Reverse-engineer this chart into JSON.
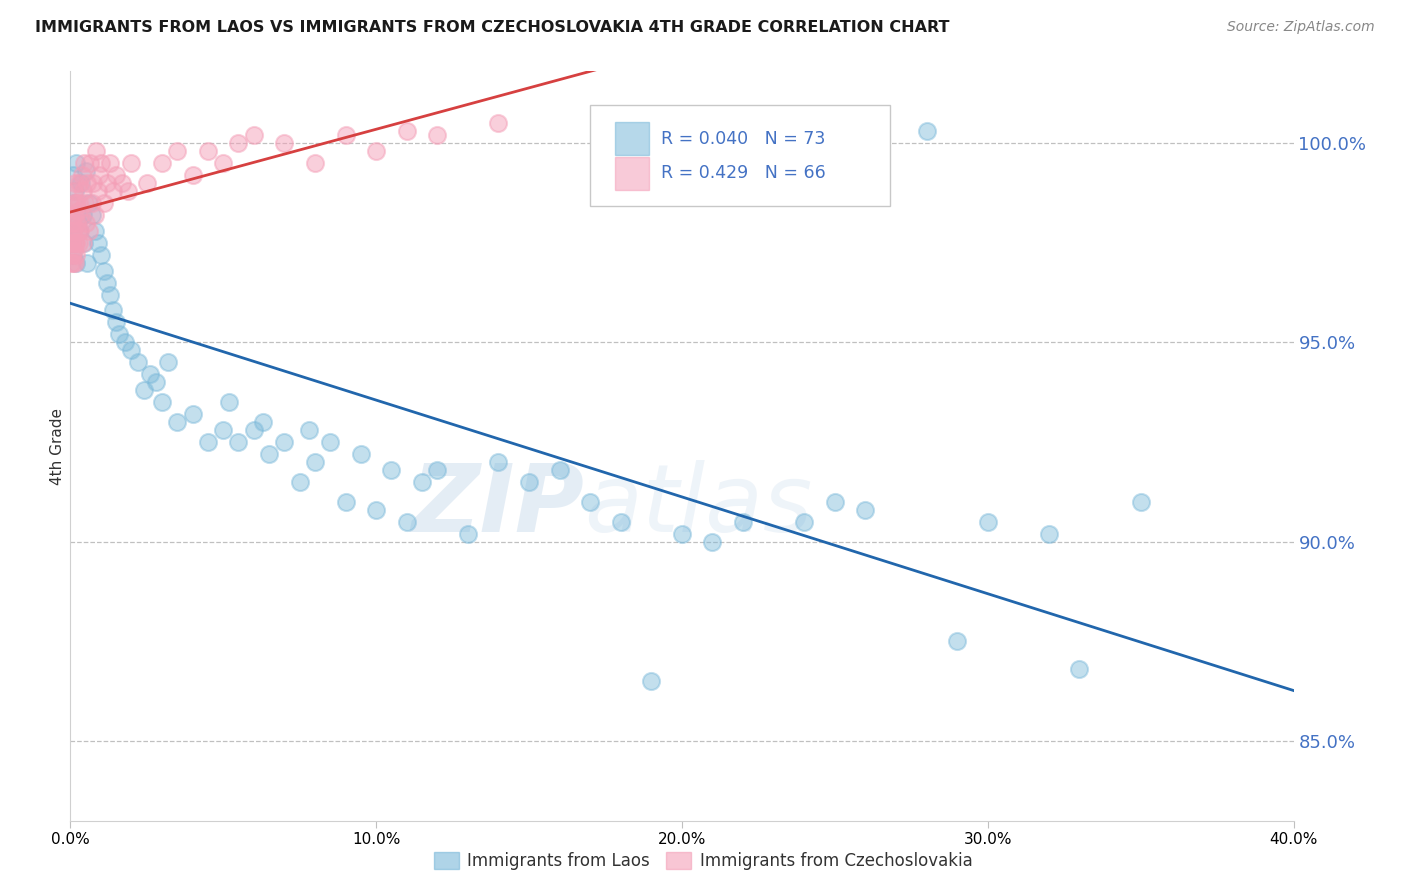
{
  "title": "IMMIGRANTS FROM LAOS VS IMMIGRANTS FROM CZECHOSLOVAKIA 4TH GRADE CORRELATION CHART",
  "source": "Source: ZipAtlas.com",
  "ylabel": "4th Grade",
  "ytick_values": [
    85.0,
    90.0,
    95.0,
    100.0
  ],
  "xlim": [
    0.0,
    40.0
  ],
  "ylim": [
    83.0,
    101.8
  ],
  "blue_R": 0.04,
  "blue_N": 73,
  "pink_R": 0.429,
  "pink_N": 66,
  "blue_color": "#7ab8d9",
  "pink_color": "#f4a0b8",
  "blue_line_color": "#2166ac",
  "pink_line_color": "#d64040",
  "watermark_zip": "ZIP",
  "watermark_atlas": "atlas",
  "blue_label": "Immigrants from Laos",
  "pink_label": "Immigrants from Czechoslovakia",
  "blue_scatter_x": [
    0.05,
    0.08,
    0.1,
    0.12,
    0.15,
    0.18,
    0.2,
    0.25,
    0.3,
    0.35,
    0.4,
    0.45,
    0.5,
    0.55,
    0.6,
    0.7,
    0.8,
    0.9,
    1.0,
    1.1,
    1.2,
    1.3,
    1.4,
    1.5,
    1.6,
    1.8,
    2.0,
    2.2,
    2.4,
    2.6,
    2.8,
    3.0,
    3.2,
    3.5,
    4.0,
    4.5,
    5.0,
    5.5,
    6.0,
    6.5,
    7.0,
    7.5,
    8.0,
    9.0,
    10.0,
    11.0,
    12.0,
    13.0,
    14.0,
    15.0,
    16.0,
    17.0,
    18.0,
    19.0,
    20.0,
    21.0,
    22.0,
    24.0,
    25.0,
    26.0,
    28.0,
    30.0,
    32.0,
    35.0,
    5.2,
    6.3,
    7.8,
    8.5,
    9.5,
    10.5,
    11.5,
    29.0,
    33.0
  ],
  "blue_scatter_y": [
    97.5,
    97.2,
    99.2,
    98.5,
    98.8,
    97.0,
    99.5,
    98.0,
    97.8,
    99.0,
    98.2,
    97.5,
    99.3,
    97.0,
    98.5,
    98.2,
    97.8,
    97.5,
    97.2,
    96.8,
    96.5,
    96.2,
    95.8,
    95.5,
    95.2,
    95.0,
    94.8,
    94.5,
    93.8,
    94.2,
    94.0,
    93.5,
    94.5,
    93.0,
    93.2,
    92.5,
    92.8,
    92.5,
    92.8,
    92.2,
    92.5,
    91.5,
    92.0,
    91.0,
    90.8,
    90.5,
    91.8,
    90.2,
    92.0,
    91.5,
    91.8,
    91.0,
    90.5,
    86.5,
    90.2,
    90.0,
    90.5,
    90.5,
    91.0,
    90.8,
    100.3,
    90.5,
    90.2,
    91.0,
    93.5,
    93.0,
    92.8,
    92.5,
    92.2,
    91.8,
    91.5,
    87.5,
    86.8
  ],
  "pink_scatter_x": [
    0.02,
    0.03,
    0.04,
    0.05,
    0.06,
    0.07,
    0.08,
    0.09,
    0.1,
    0.11,
    0.12,
    0.13,
    0.14,
    0.15,
    0.16,
    0.17,
    0.18,
    0.19,
    0.2,
    0.22,
    0.24,
    0.25,
    0.27,
    0.28,
    0.3,
    0.32,
    0.35,
    0.38,
    0.4,
    0.42,
    0.45,
    0.48,
    0.5,
    0.55,
    0.6,
    0.65,
    0.7,
    0.75,
    0.8,
    0.85,
    0.9,
    0.95,
    1.0,
    1.1,
    1.2,
    1.3,
    1.4,
    1.5,
    1.7,
    1.9,
    2.0,
    2.5,
    3.0,
    3.5,
    4.0,
    4.5,
    5.0,
    5.5,
    6.0,
    7.0,
    8.0,
    9.0,
    10.0,
    11.0,
    12.0,
    14.0
  ],
  "pink_scatter_y": [
    97.5,
    97.0,
    97.8,
    97.2,
    98.0,
    97.5,
    97.8,
    98.2,
    97.0,
    98.5,
    97.3,
    98.8,
    97.5,
    98.2,
    97.0,
    99.0,
    97.5,
    98.5,
    97.2,
    98.0,
    97.8,
    98.3,
    97.5,
    99.0,
    98.5,
    97.8,
    98.2,
    99.2,
    98.8,
    97.5,
    99.5,
    98.5,
    98.0,
    99.0,
    97.8,
    99.5,
    98.5,
    99.0,
    98.2,
    99.8,
    98.8,
    99.2,
    99.5,
    98.5,
    99.0,
    99.5,
    98.8,
    99.2,
    99.0,
    98.8,
    99.5,
    99.0,
    99.5,
    99.8,
    99.2,
    99.8,
    99.5,
    100.0,
    100.2,
    100.0,
    99.5,
    100.2,
    99.8,
    100.3,
    100.2,
    100.5
  ]
}
